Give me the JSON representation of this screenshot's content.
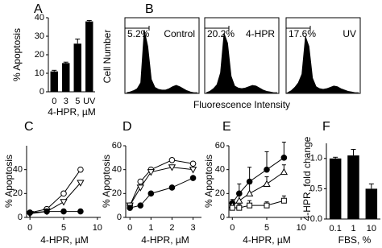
{
  "chart_data": [
    {
      "type": "bar",
      "label": "A",
      "ylabel": "% Apoptosis",
      "xlabel": "4-HPR, µM",
      "color": "#000000",
      "categories": [
        "0",
        "3",
        "5",
        "UV"
      ],
      "values": [
        11,
        15.5,
        26,
        38
      ],
      "errors": [
        0.6,
        0.5,
        2.5,
        0.5
      ],
      "ylim": [
        0,
        40
      ],
      "yticks": [
        0,
        10,
        20,
        30,
        40
      ]
    },
    {
      "type": "area",
      "label": "B",
      "ylabel": "Cell Number",
      "xlabel": "Fluorescence Intensity",
      "color": "#000000",
      "xlim": [
        0,
        20
      ],
      "ylim": [
        0,
        100
      ],
      "x": [
        0,
        1,
        2,
        3,
        4,
        5,
        6,
        7,
        8,
        9,
        10,
        11,
        12,
        13,
        14,
        15,
        16,
        17,
        18,
        19,
        20
      ],
      "plots": [
        {
          "name": "Control",
          "annotation": "5.2%",
          "values": [
            0,
            1,
            3,
            6,
            15,
            95,
            70,
            20,
            8,
            5,
            4,
            4,
            6,
            9,
            11,
            9,
            6,
            3,
            1,
            0,
            0
          ]
        },
        {
          "name": "4-HPR",
          "annotation": "20.2%",
          "values": [
            0,
            2,
            6,
            12,
            30,
            90,
            75,
            25,
            10,
            7,
            6,
            7,
            9,
            11,
            10,
            7,
            4,
            2,
            1,
            0,
            0
          ]
        },
        {
          "name": "UV",
          "annotation": "17.6%",
          "values": [
            0,
            3,
            8,
            15,
            28,
            85,
            70,
            22,
            9,
            6,
            5,
            6,
            8,
            10,
            9,
            6,
            4,
            2,
            1,
            0,
            0
          ]
        }
      ]
    },
    {
      "type": "line",
      "label": "C",
      "ylabel": "% Apoptosis",
      "xlabel": "4-HPR, µM",
      "xlim": [
        -0.5,
        10.5
      ],
      "xticks": [
        0,
        5,
        10
      ],
      "ylim": [
        0,
        60
      ],
      "yticks": [
        0,
        20,
        40
      ],
      "series": [
        {
          "color": "#000000",
          "marker": "circle",
          "fill": "open",
          "x": [
            0,
            2.5,
            5,
            7.5
          ],
          "values": [
            4,
            7,
            20,
            40
          ]
        },
        {
          "color": "#000000",
          "marker": "triangle-down",
          "fill": "open",
          "x": [
            0,
            2.5,
            5,
            7.5
          ],
          "values": [
            3,
            5,
            13,
            29
          ]
        },
        {
          "color": "#000000",
          "marker": "circle",
          "fill": "filled",
          "x": [
            0,
            2.5,
            5,
            7.5
          ],
          "values": [
            4,
            5,
            5,
            5
          ]
        }
      ]
    },
    {
      "type": "line",
      "label": "D",
      "ylabel": "% Apoptosis",
      "xlabel": "4-HPR, µM",
      "xlim": [
        -0.2,
        3.4
      ],
      "xticks": [
        0,
        1,
        2,
        3
      ],
      "ylim": [
        0,
        60
      ],
      "yticks": [
        0,
        20,
        40,
        60
      ],
      "series": [
        {
          "color": "#000000",
          "marker": "circle",
          "fill": "open",
          "x": [
            0,
            0.5,
            1,
            2,
            3
          ],
          "values": [
            10,
            30,
            40,
            48,
            45
          ]
        },
        {
          "color": "#000000",
          "marker": "triangle-down",
          "fill": "open",
          "x": [
            0,
            0.5,
            1,
            2,
            3
          ],
          "values": [
            10,
            25,
            38,
            42,
            40
          ]
        },
        {
          "color": "#000000",
          "marker": "circle",
          "fill": "filled",
          "x": [
            0,
            0.5,
            1,
            2,
            3
          ],
          "values": [
            8,
            10,
            20,
            25,
            33
          ]
        }
      ]
    },
    {
      "type": "line",
      "label": "E",
      "ylabel": "% Apoptosis",
      "xlabel": "4-HPR, µM",
      "xlim": [
        -0.5,
        10.5
      ],
      "xticks": [
        0,
        5,
        10
      ],
      "ylim": [
        0,
        60
      ],
      "yticks": [
        0,
        20,
        40,
        60
      ],
      "series": [
        {
          "color": "#000000",
          "marker": "circle",
          "fill": "filled",
          "x": [
            0,
            1,
            2.5,
            5,
            7.5
          ],
          "values": [
            12,
            20,
            30,
            40,
            50
          ],
          "errors": [
            3,
            8,
            12,
            15,
            13
          ]
        },
        {
          "color": "#000000",
          "marker": "triangle-up",
          "fill": "open",
          "x": [
            0,
            1,
            2.5,
            5,
            7.5
          ],
          "values": [
            10,
            14,
            20,
            28,
            38
          ],
          "errors": [
            3,
            5,
            8,
            6,
            6
          ]
        },
        {
          "color": "#000000",
          "marker": "square",
          "fill": "open",
          "x": [
            0,
            1,
            2.5,
            5,
            7.5
          ],
          "values": [
            8,
            8,
            10,
            10,
            14
          ],
          "errors": [
            2,
            3,
            4,
            3,
            4
          ]
        }
      ]
    },
    {
      "type": "bar",
      "label": "F",
      "ylabel": "4-HPR, fold change",
      "xlabel": "FBS, %",
      "color": "#000000",
      "categories": [
        "0.1",
        "1",
        "10"
      ],
      "values": [
        1.0,
        1.05,
        0.5
      ],
      "errors": [
        0.02,
        0.1,
        0.08
      ],
      "ylim": [
        0,
        1.25
      ],
      "yticks": [
        {
          "value": 0,
          "label": "0.0"
        },
        {
          "value": 0.5,
          "label": "0.5"
        },
        {
          "value": 1,
          "label": "1.0"
        }
      ]
    }
  ]
}
